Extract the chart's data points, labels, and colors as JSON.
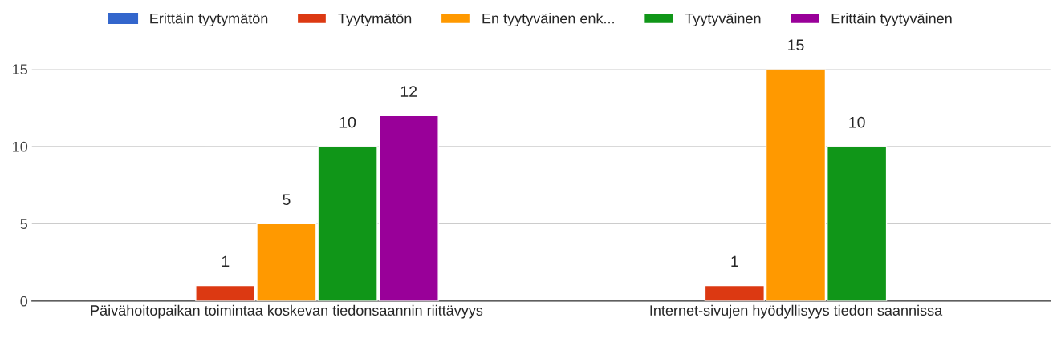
{
  "chart_data": {
    "type": "bar",
    "categories": [
      "Päivähoitopaikan toimintaa koskevan tiedonsaannin riittävyys",
      "Internet-sivujen hyödyllisyys tiedon saannissa"
    ],
    "series": [
      {
        "name": "Erittäin tyytymätön",
        "color": "#3366cc",
        "values": [
          null,
          null
        ],
        "value_labels": [
          null,
          null
        ]
      },
      {
        "name": "Tyytymätön",
        "color": "#dc3912",
        "values": [
          1,
          1
        ],
        "value_labels": [
          "1",
          "1"
        ]
      },
      {
        "name": "En tyytyväinen enk...",
        "color": "#ff9900",
        "values": [
          5,
          15
        ],
        "value_labels": [
          "5",
          "15"
        ]
      },
      {
        "name": "Tyytyväinen",
        "color": "#109618",
        "values": [
          10,
          10
        ],
        "value_labels": [
          "10",
          "10"
        ]
      },
      {
        "name": "Erittäin tyytyväinen",
        "color": "#990099",
        "values": [
          12,
          null
        ],
        "value_labels": [
          "12",
          null
        ]
      }
    ],
    "ylim": [
      0,
      15
    ],
    "yticks": [
      0,
      5,
      10,
      15
    ],
    "grid": "y",
    "legend": "top"
  }
}
